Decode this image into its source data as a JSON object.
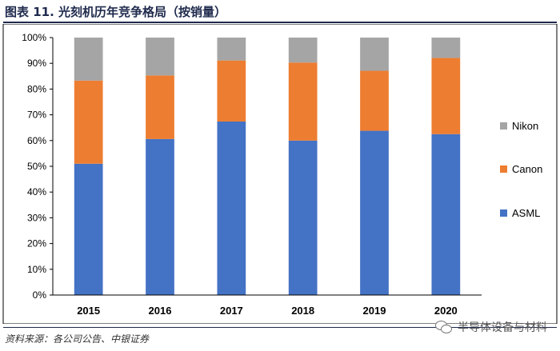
{
  "figure_title": "图表 11. 光刻机历年竞争格局（按销量）",
  "source_note": "资料来源：各公司公告、中银证券",
  "watermark": "半导体设备与材料",
  "icons": {
    "watermark": "wechat-icon"
  },
  "chart_data": {
    "type": "bar",
    "stacked": true,
    "categories": [
      "2015",
      "2016",
      "2017",
      "2018",
      "2019",
      "2020"
    ],
    "series": [
      {
        "name": "ASML",
        "color": "#4472c4",
        "values": [
          51,
          60.6,
          67.4,
          60,
          63.8,
          62.5
        ]
      },
      {
        "name": "Canon",
        "color": "#ed7d31",
        "values": [
          32.3,
          24.7,
          23.7,
          30.3,
          23.3,
          29.6
        ]
      },
      {
        "name": "Nikon",
        "color": "#a5a5a5",
        "values": [
          16.7,
          14.7,
          8.9,
          9.7,
          12.9,
          7.9
        ]
      }
    ],
    "ylim": [
      0,
      100
    ],
    "yticks": [
      "0%",
      "10%",
      "20%",
      "30%",
      "40%",
      "50%",
      "60%",
      "70%",
      "80%",
      "90%",
      "100%"
    ],
    "legend_order": [
      "Nikon",
      "Canon",
      "ASML"
    ],
    "legend_position": "right",
    "grid": false
  }
}
